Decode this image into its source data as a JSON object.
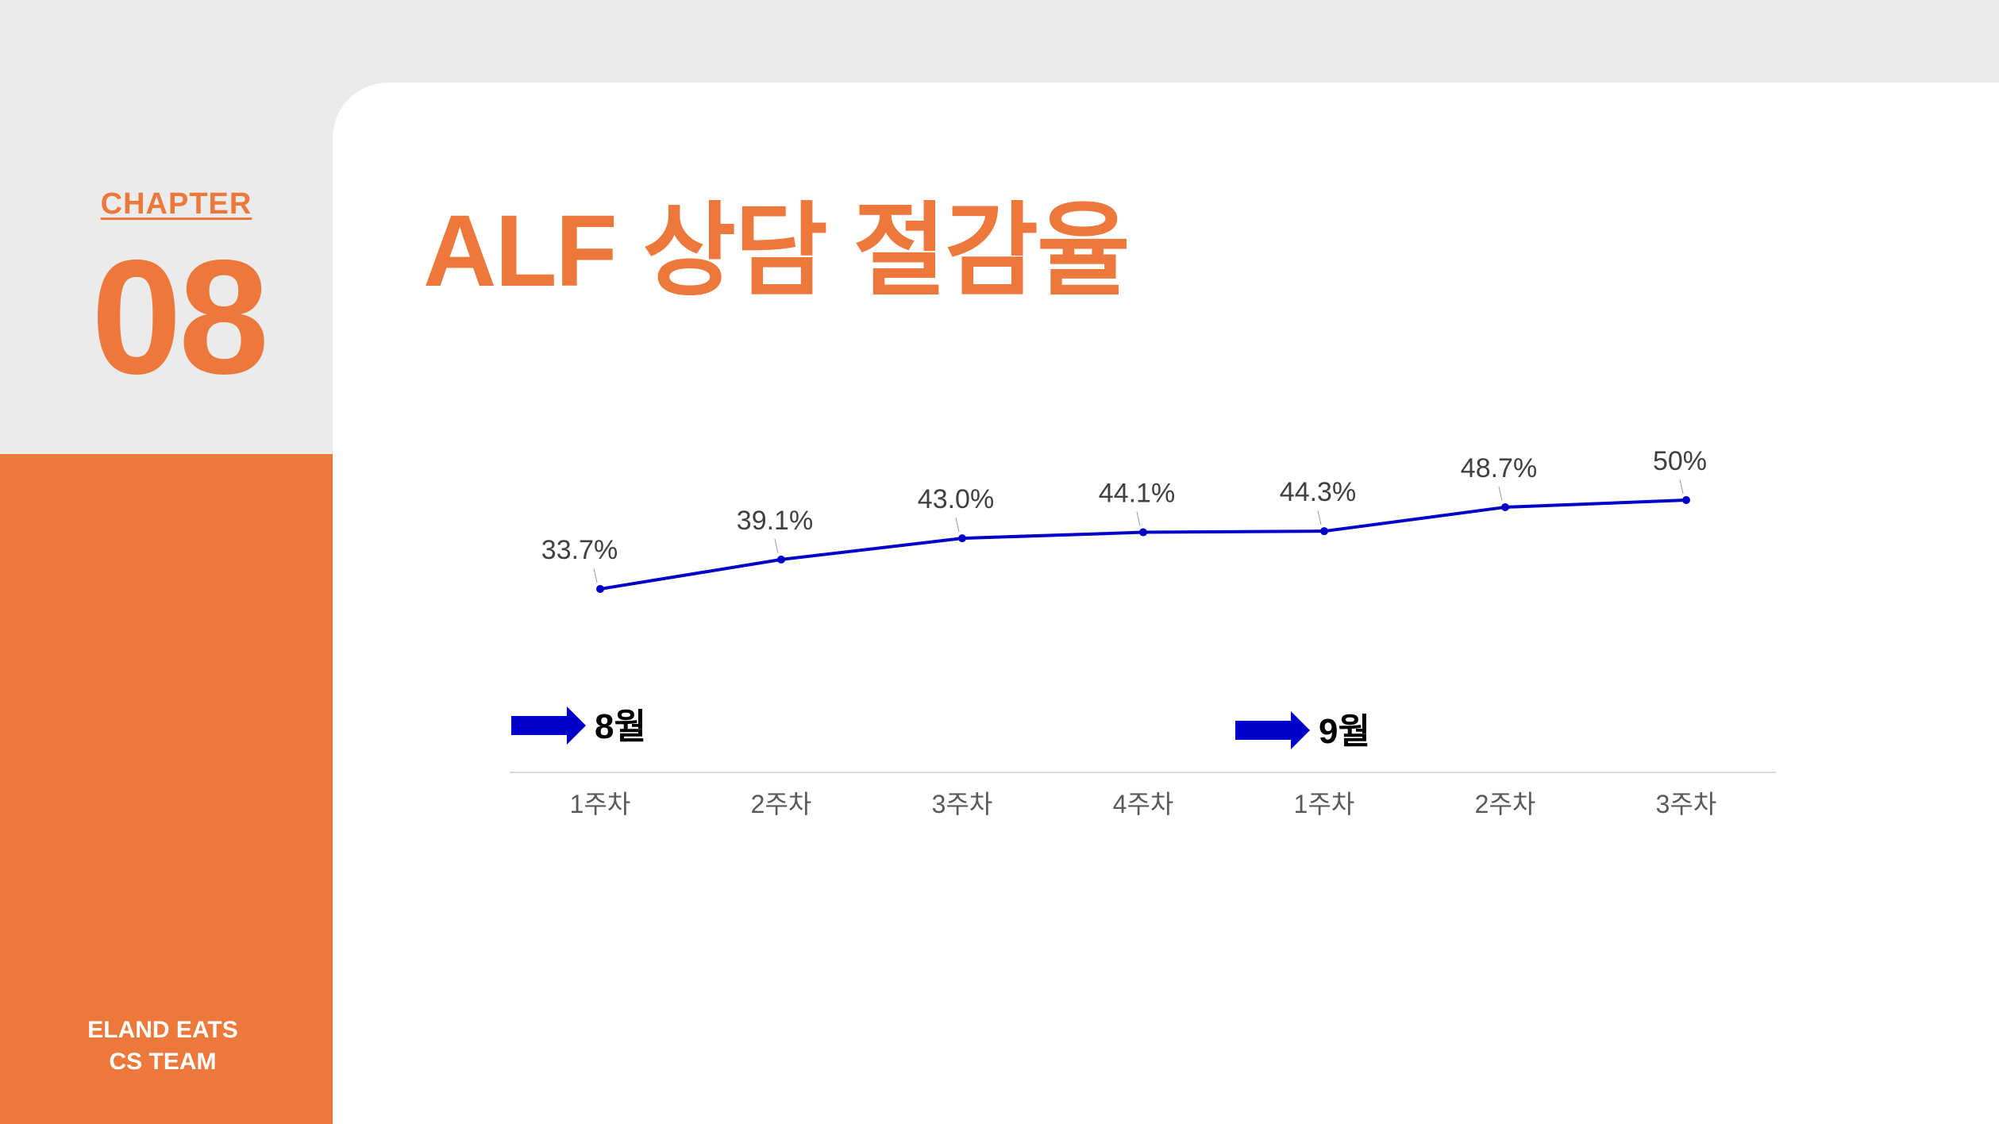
{
  "sidebar": {
    "chapter_label": "CHAPTER",
    "chapter_number": "08",
    "team_line1": "ELAND EATS",
    "team_line2": "CS TEAM"
  },
  "colors": {
    "accent": "#ec783b",
    "series": "#0000c8",
    "label": "#404040"
  },
  "chart_data": {
    "type": "line",
    "title": "ALF 상담 절감율",
    "categories": [
      "1주차",
      "2주차",
      "3주차",
      "4주차",
      "1주차",
      "2주차",
      "3주차"
    ],
    "groups": [
      {
        "label": "8월",
        "start_index": 0,
        "icon": "arrow-right-icon"
      },
      {
        "label": "9월",
        "start_index": 4,
        "icon": "arrow-right-icon"
      }
    ],
    "series": [
      {
        "values": [
          33.7,
          39.1,
          43.0,
          44.1,
          44.3,
          48.7,
          50
        ],
        "data_labels": [
          "33.7%",
          "39.1%",
          "43.0%",
          "44.1%",
          "44.3%",
          "48.7%",
          "50%"
        ]
      }
    ],
    "unit": "%",
    "grid": false,
    "legend": "none"
  }
}
